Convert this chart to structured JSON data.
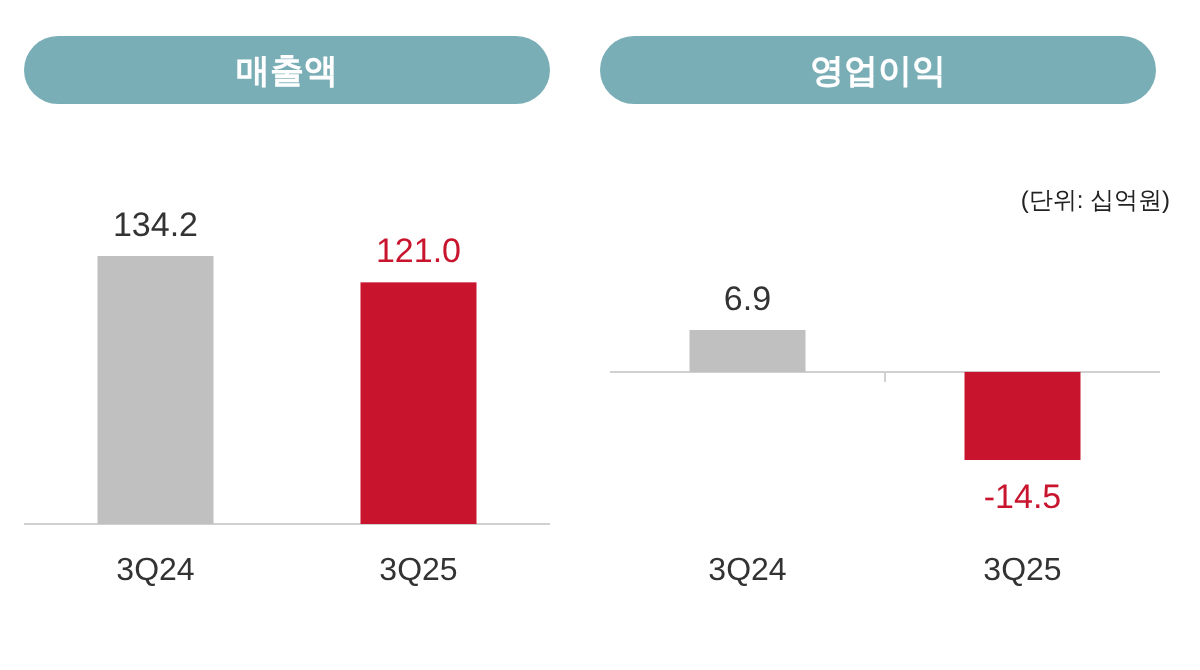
{
  "chart_data": [
    {
      "type": "bar",
      "title": "매출액",
      "categories": [
        "3Q24",
        "3Q25"
      ],
      "values": [
        134.2,
        121.0
      ],
      "value_labels": [
        "134.2",
        "121.0"
      ],
      "colors": [
        "#c0c0c0",
        "#c8152d"
      ]
    },
    {
      "type": "bar",
      "title": "영업이익",
      "annotations": [
        "(단위: 십억원)"
      ],
      "categories": [
        "3Q24",
        "3Q25"
      ],
      "values": [
        6.9,
        -14.5
      ],
      "value_labels": [
        "6.9",
        "-14.5"
      ],
      "colors": [
        "#c0c0c0",
        "#c8152d"
      ]
    }
  ]
}
